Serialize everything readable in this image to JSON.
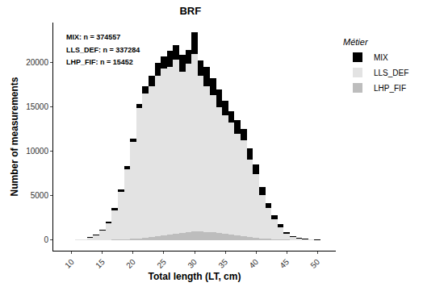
{
  "chart_data": {
    "type": "bar",
    "title": "BRF",
    "x_label": "Total length (LT, cm)",
    "y_label": "Number of measurements",
    "x": [
      11,
      12,
      13,
      14,
      15,
      16,
      17,
      18,
      19,
      20,
      21,
      22,
      23,
      24,
      25,
      26,
      27,
      28,
      29,
      30,
      31,
      32,
      33,
      34,
      35,
      36,
      37,
      38,
      39,
      40,
      41,
      42,
      43,
      44,
      45,
      46,
      47,
      48,
      49,
      50
    ],
    "series": [
      {
        "name": "MIX",
        "color": "#000000",
        "values": [
          50,
          100,
          300,
          600,
          1200,
          2100,
          3600,
          5700,
          8300,
          11400,
          15300,
          17300,
          18500,
          20000,
          20700,
          21300,
          22000,
          20900,
          21400,
          23400,
          20200,
          19500,
          18200,
          17000,
          15700,
          14500,
          13500,
          12500,
          10300,
          8500,
          6000,
          4200,
          2800,
          1800,
          900,
          450,
          250,
          120,
          60,
          30
        ]
      },
      {
        "name": "LLS_DEF",
        "color": "#e3e3e3",
        "values": [
          40,
          80,
          250,
          500,
          1050,
          1900,
          3300,
          5400,
          8000,
          11100,
          14900,
          16500,
          17300,
          18500,
          19300,
          19500,
          20300,
          19000,
          19900,
          21000,
          18500,
          17300,
          16300,
          15000,
          14100,
          13200,
          12000,
          11200,
          9100,
          7400,
          5100,
          3600,
          2300,
          1400,
          700,
          350,
          180,
          80,
          40,
          20
        ]
      },
      {
        "name": "LHP_FIF",
        "color": "#bdbdbd",
        "values": [
          0,
          0,
          0,
          0,
          0,
          20,
          40,
          70,
          100,
          150,
          200,
          260,
          330,
          400,
          500,
          600,
          700,
          800,
          850,
          1000,
          950,
          900,
          850,
          800,
          700,
          650,
          550,
          450,
          350,
          280,
          200,
          150,
          100,
          60,
          40,
          20,
          10,
          5,
          0,
          0
        ]
      }
    ],
    "xlim": [
      7,
      53
    ],
    "ylim": [
      -1200,
      24500
    ],
    "xticks": [
      10,
      15,
      20,
      25,
      30,
      35,
      40,
      45,
      50
    ],
    "yticks": [
      0,
      5000,
      10000,
      15000,
      20000
    ],
    "stacked": false,
    "grid": false,
    "legend": "top right",
    "legend_title": "Métier",
    "annotations": [
      "MIX: n = 374557",
      "LLS_DEF: n = 337284",
      "LHP_FIF: n = 15452"
    ]
  }
}
